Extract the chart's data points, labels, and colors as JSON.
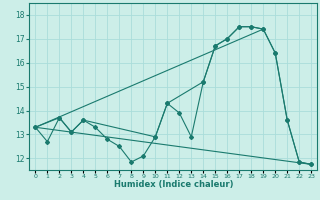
{
  "xlabel": "Humidex (Indice chaleur)",
  "background_color": "#cceee8",
  "grid_color": "#aaddda",
  "line_color": "#1a7a6e",
  "xlim": [
    -0.5,
    23.5
  ],
  "ylim": [
    11.5,
    18.5
  ],
  "xticks": [
    0,
    1,
    2,
    3,
    4,
    5,
    6,
    7,
    8,
    9,
    10,
    11,
    12,
    13,
    14,
    15,
    16,
    17,
    18,
    19,
    20,
    21,
    22,
    23
  ],
  "yticks": [
    12,
    13,
    14,
    15,
    16,
    17,
    18
  ],
  "series_jagged": {
    "x": [
      0,
      1,
      2,
      3,
      4,
      5,
      6,
      7,
      8,
      9,
      10,
      11,
      12,
      13,
      14,
      15,
      16,
      17,
      18,
      19,
      20,
      21,
      22,
      23
    ],
    "y": [
      13.3,
      12.7,
      13.7,
      13.1,
      13.6,
      13.3,
      12.8,
      12.5,
      11.85,
      12.1,
      12.9,
      14.3,
      13.9,
      12.9,
      15.2,
      16.7,
      17.0,
      17.5,
      17.5,
      17.4,
      16.4,
      13.6,
      11.85,
      11.75
    ]
  },
  "series_smooth": {
    "x": [
      0,
      2,
      3,
      4,
      10,
      11,
      14,
      15,
      16,
      17,
      18,
      19,
      20,
      21,
      22,
      23
    ],
    "y": [
      13.3,
      13.7,
      13.1,
      13.6,
      12.9,
      14.3,
      15.2,
      16.7,
      17.0,
      17.5,
      17.5,
      17.4,
      16.4,
      13.6,
      11.85,
      11.75
    ]
  },
  "series_line_up": {
    "x": [
      0,
      19
    ],
    "y": [
      13.3,
      17.4
    ]
  },
  "series_line_down": {
    "x": [
      0,
      23
    ],
    "y": [
      13.3,
      11.75
    ]
  }
}
